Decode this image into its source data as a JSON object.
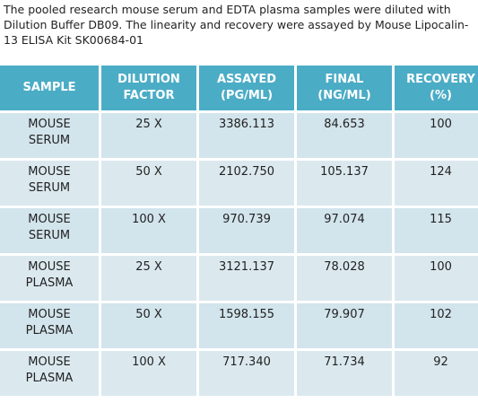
{
  "intro": "The pooled research mouse serum and EDTA plasma samples were diluted with Dilution Buffer DB09. The linearity and recovery were assayed by Mouse Lipocalin-13 ELISA Kit SK00684-01",
  "table": {
    "header": [
      "SAMPLE",
      "DILUTION FACTOR",
      "ASSAYED (PG/ML)",
      "FINAL (NG/ML)",
      "RECOVERY (%)"
    ],
    "rows": [
      [
        "MOUSE SERUM",
        "25 X",
        "3386.113",
        "84.653",
        "100"
      ],
      [
        "MOUSE SERUM",
        "50 X",
        "2102.750",
        "105.137",
        "124"
      ],
      [
        "MOUSE SERUM",
        "100 X",
        "970.739",
        "97.074",
        "115"
      ],
      [
        "MOUSE PLASMA",
        "25 X",
        "3121.137",
        "78.028",
        "100"
      ],
      [
        "MOUSE PLASMA",
        "50 X",
        "1598.155",
        "79.907",
        "102"
      ],
      [
        "MOUSE PLASMA",
        "100 X",
        "717.340",
        "71.734",
        "92"
      ]
    ]
  }
}
